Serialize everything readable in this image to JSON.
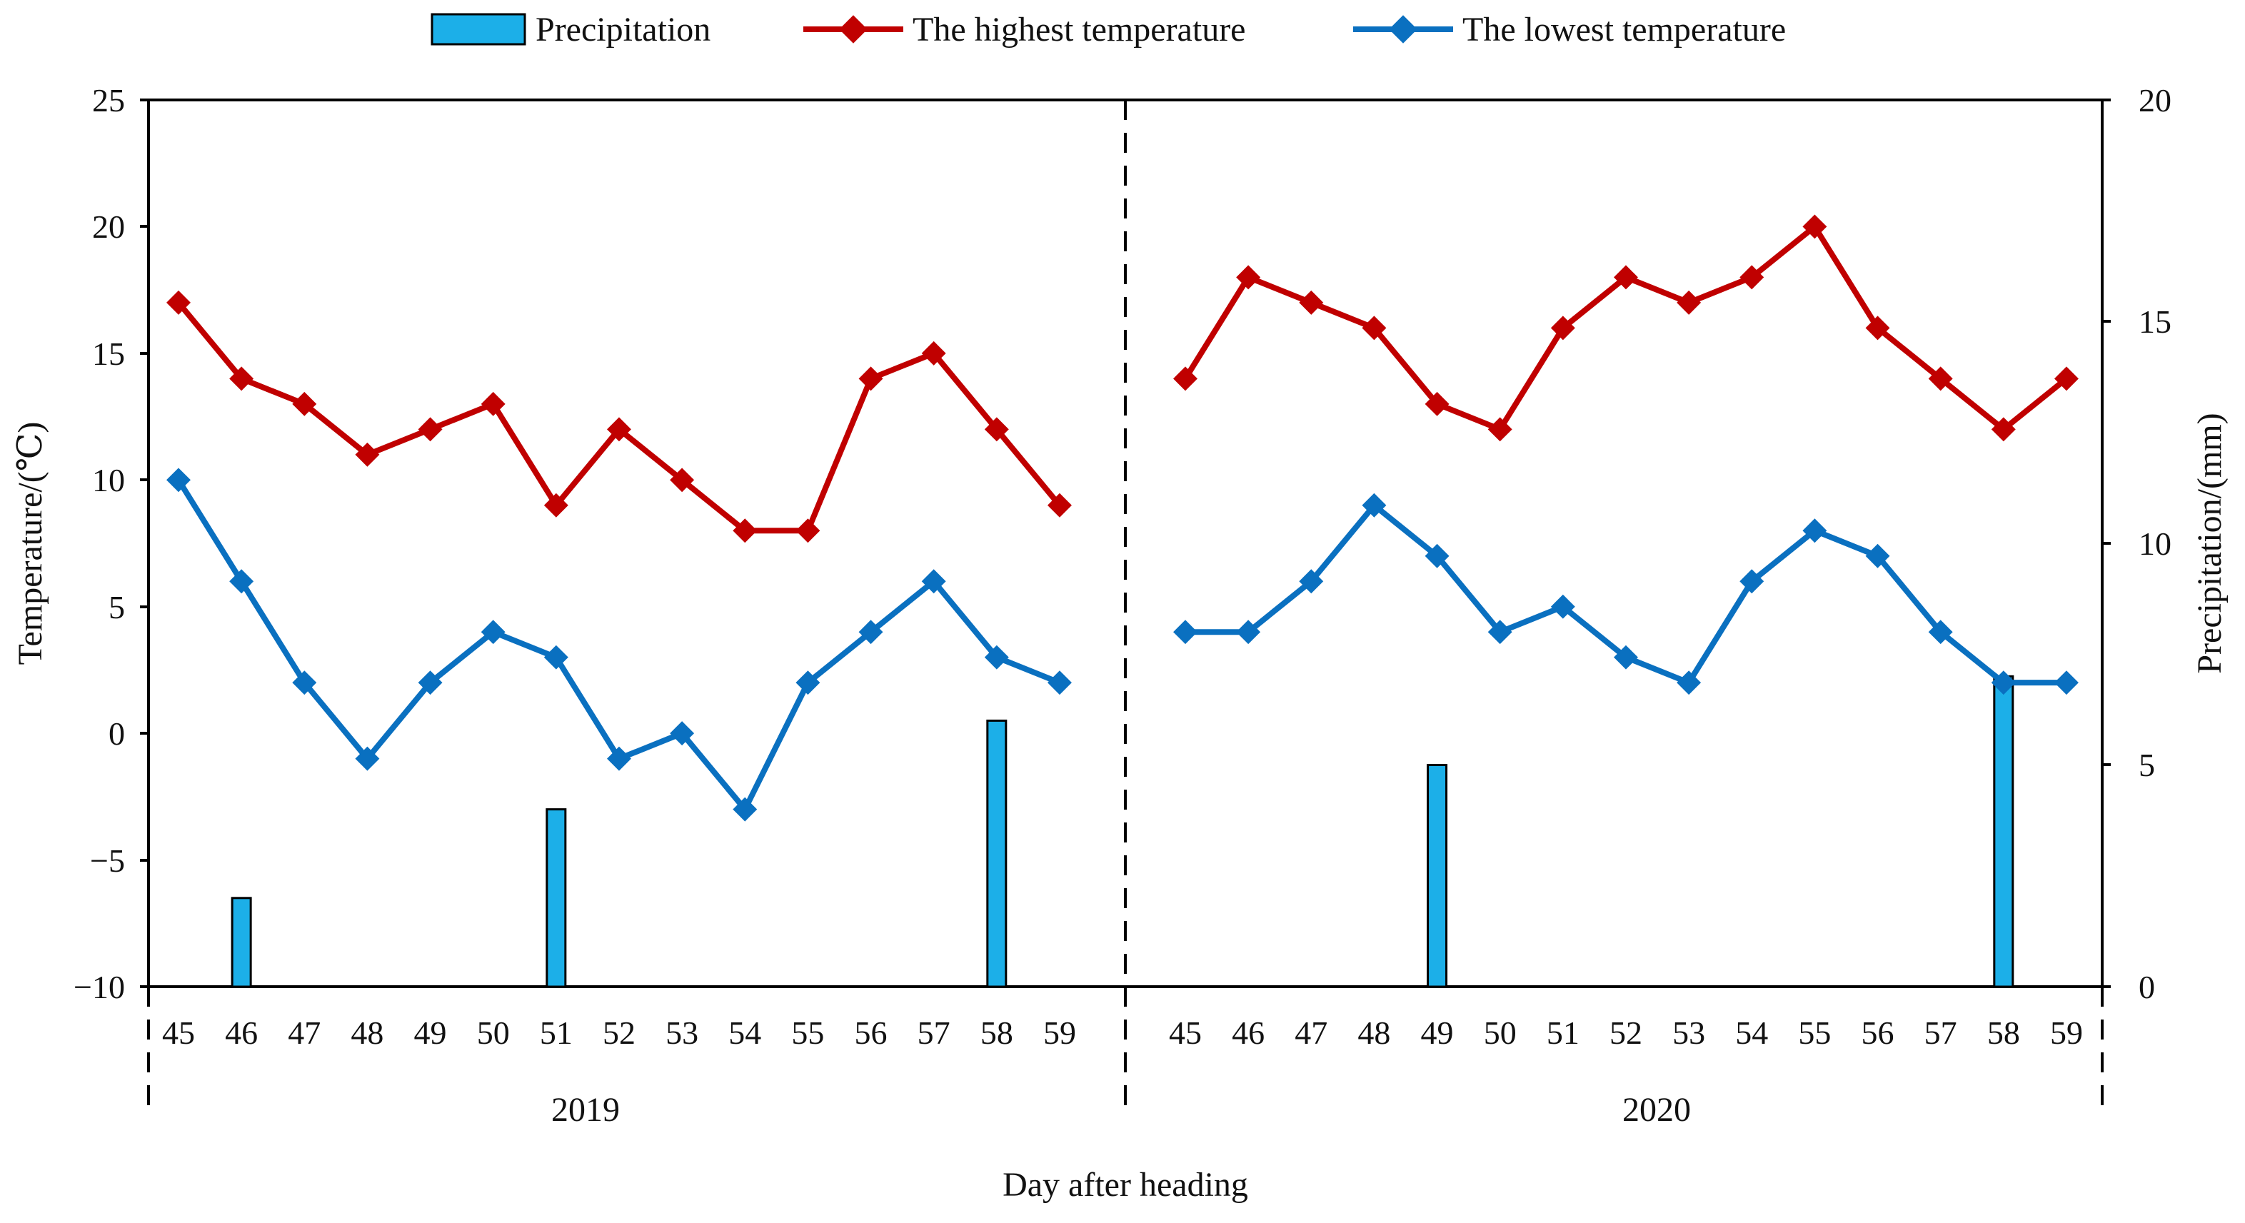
{
  "chart_data": {
    "type": "bar+line",
    "xlabel": "Day after heading",
    "ylabel_left": "Temperature/(℃)",
    "ylabel_right": "Precipitation/(mm)",
    "ylim_left": [
      -10,
      25
    ],
    "yticks_left": [
      "25",
      "20",
      "15",
      "10",
      "5",
      "0",
      "−5",
      "−10"
    ],
    "ylim_right": [
      0,
      20
    ],
    "yticks_right": [
      "20",
      "15",
      "10",
      "5",
      "0"
    ],
    "legend": {
      "placement": "top-center",
      "entries": [
        "Precipitation",
        "The highest temperature",
        "The lowest temperature"
      ]
    },
    "colors": {
      "precip": "#1CAFE8",
      "high": "#C00000",
      "low": "#0A70C0"
    },
    "panels": [
      {
        "year": "2019",
        "days": [
          "45",
          "46",
          "47",
          "48",
          "49",
          "50",
          "51",
          "52",
          "53",
          "54",
          "55",
          "56",
          "57",
          "58",
          "59"
        ],
        "highest": [
          17,
          14,
          13,
          11,
          12,
          13,
          9,
          12,
          10,
          8,
          8,
          14,
          15,
          12,
          9
        ],
        "lowest": [
          10,
          6,
          2,
          -1,
          2,
          4,
          3,
          -1,
          0,
          -3,
          2,
          4,
          6,
          3,
          2
        ],
        "precipitation": [
          0,
          2,
          0,
          0,
          0,
          0,
          4,
          0,
          0,
          0,
          0,
          0,
          0,
          6,
          0
        ]
      },
      {
        "year": "2020",
        "days": [
          "45",
          "46",
          "47",
          "48",
          "49",
          "50",
          "51",
          "52",
          "53",
          "54",
          "55",
          "56",
          "57",
          "58",
          "59"
        ],
        "highest": [
          14,
          18,
          17,
          16,
          13,
          12,
          16,
          18,
          17,
          18,
          20,
          16,
          14,
          12,
          14
        ],
        "lowest": [
          4,
          4,
          6,
          9,
          7,
          4,
          5,
          3,
          2,
          6,
          8,
          7,
          4,
          2,
          2
        ],
        "precipitation": [
          0,
          0,
          0,
          0,
          5,
          0,
          0,
          0,
          0,
          0,
          0,
          0,
          0,
          7,
          0
        ]
      }
    ]
  }
}
